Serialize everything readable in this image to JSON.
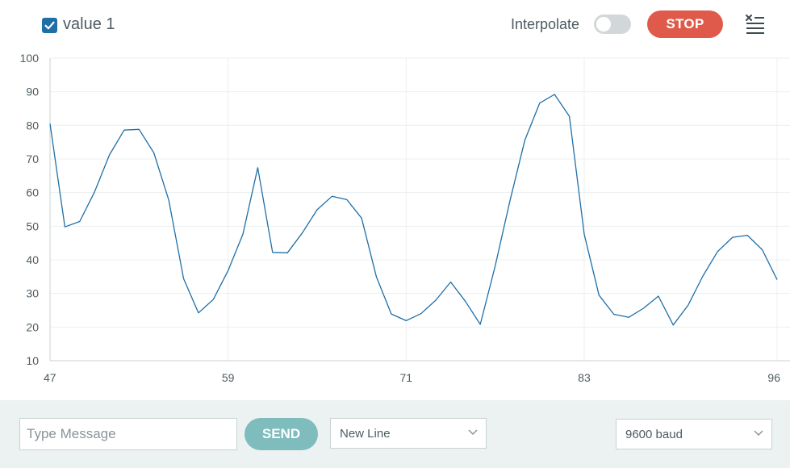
{
  "toolbar": {
    "series_label": "value 1",
    "series_checked": true,
    "interpolate_label": "Interpolate",
    "interpolate_on": false,
    "stop_label": "STOP",
    "clear_icon": "clear-list-icon"
  },
  "colors": {
    "series": "#1f6fa7",
    "stop": "#df5a4a",
    "send": "#7fbcbd",
    "bottom_bar": "#ecf1f1"
  },
  "chart_data": {
    "type": "line",
    "ylim": [
      10,
      100
    ],
    "yticks": [
      10,
      20,
      30,
      40,
      50,
      60,
      70,
      80,
      90,
      100
    ],
    "xlim": [
      47,
      96
    ],
    "xticks": [
      47,
      59,
      71,
      83,
      96
    ],
    "grid": true,
    "series": [
      {
        "x": [
          47,
          48,
          49,
          50,
          51,
          52,
          53,
          54,
          55,
          56,
          57,
          58,
          59,
          60,
          61,
          62,
          63,
          64,
          65,
          66,
          67,
          68,
          69,
          70,
          71,
          72,
          73,
          74,
          75,
          76,
          77,
          78,
          79,
          80,
          81,
          82,
          83,
          84,
          85,
          86,
          87,
          88,
          89,
          90,
          91,
          92,
          93,
          94,
          95,
          96
        ],
        "values": [
          80.5,
          49.8,
          51.4,
          60.2,
          71.2,
          78.6,
          78.8,
          71.8,
          57.8,
          34.4,
          24.2,
          28.2,
          36.8,
          47.6,
          67.4,
          42.2,
          42.1,
          48,
          54.9,
          58.9,
          57.9,
          52.4,
          34.9,
          23.9,
          21.9,
          24,
          28,
          33.4,
          27.6,
          20.8,
          38.1,
          57.6,
          75.6,
          86.6,
          89.2,
          82.7,
          47.6,
          29.5,
          23.8,
          22.9,
          25.6,
          29.2,
          20.6,
          26.5,
          35.2,
          42.5,
          46.7,
          47.3,
          43,
          34.1
        ]
      }
    ]
  },
  "footer": {
    "message_placeholder": "Type Message",
    "send_label": "SEND",
    "line_ending": "New Line",
    "baud_rate": "9600 baud"
  }
}
